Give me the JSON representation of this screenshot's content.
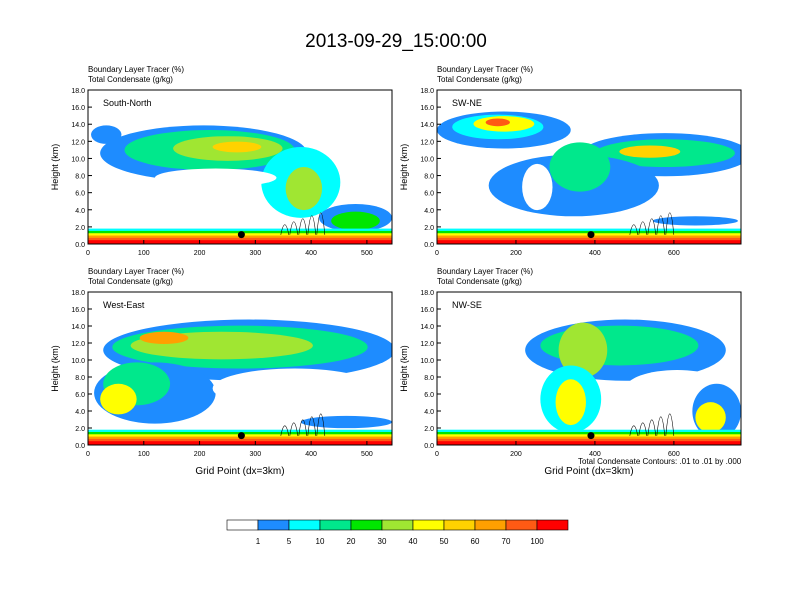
{
  "figure": {
    "title": "2013-09-29_15:00:00",
    "footnote": "Total Condensate Contours: .01 to .01 by .000"
  },
  "colorbar": {
    "colors": [
      "#ffffff",
      "#1e8cff",
      "#00ffff",
      "#00e88c",
      "#00e600",
      "#a0e632",
      "#ffff00",
      "#ffd200",
      "#ffa000",
      "#ff5a14",
      "#ff0000"
    ],
    "labels": [
      "1",
      "5",
      "10",
      "20",
      "30",
      "40",
      "50",
      "60",
      "70",
      "100"
    ]
  },
  "chart_data": [
    {
      "type": "heatmap",
      "title": "South-North",
      "left_title_1": "Boundary Layer Tracer   (%)",
      "left_title_2": "Total Condensate   (g/kg)",
      "ylabel": "Height (km)",
      "xlabel": "",
      "xlim": [
        0,
        545
      ],
      "ylim": [
        0,
        18
      ],
      "xticks": [
        "0",
        "100",
        "200",
        "300",
        "400",
        "500"
      ],
      "yticks": [
        "0.0",
        "2.0",
        "4.0",
        "6.0",
        "8.0",
        "10.0",
        "12.0",
        "14.0",
        "16.0",
        "18.0"
      ],
      "marker": [
        275,
        1.1
      ]
    },
    {
      "type": "heatmap",
      "title": "SW-NE",
      "left_title_1": "Boundary Layer Tracer   (%)",
      "left_title_2": "Total Condensate   (g/kg)",
      "ylabel": "Height (km)",
      "xlabel": "",
      "xlim": [
        0,
        770
      ],
      "ylim": [
        0,
        18
      ],
      "xticks": [
        "0",
        "200",
        "400",
        "600"
      ],
      "yticks": [
        "0.0",
        "2.0",
        "4.0",
        "6.0",
        "8.0",
        "10.0",
        "12.0",
        "14.0",
        "16.0",
        "18.0"
      ],
      "marker": [
        390,
        1.1
      ]
    },
    {
      "type": "heatmap",
      "title": "West-East",
      "left_title_1": "Boundary Layer Tracer   (%)",
      "left_title_2": "Total Condensate   (g/kg)",
      "ylabel": "Height (km)",
      "xlabel": "Grid Point (dx=3km)",
      "xlim": [
        0,
        545
      ],
      "ylim": [
        0,
        18
      ],
      "xticks": [
        "0",
        "100",
        "200",
        "300",
        "400",
        "500"
      ],
      "yticks": [
        "0.0",
        "2.0",
        "4.0",
        "6.0",
        "8.0",
        "10.0",
        "12.0",
        "14.0",
        "16.0",
        "18.0"
      ],
      "marker": [
        275,
        1.1
      ]
    },
    {
      "type": "heatmap",
      "title": "NW-SE",
      "left_title_1": "Boundary Layer Tracer   (%)",
      "left_title_2": "Total Condensate   (g/kg)",
      "ylabel": "Height (km)",
      "xlabel": "Grid Point (dx=3km)",
      "xlim": [
        0,
        770
      ],
      "ylim": [
        0,
        18
      ],
      "xticks": [
        "0",
        "200",
        "400",
        "600"
      ],
      "yticks": [
        "0.0",
        "2.0",
        "4.0",
        "6.0",
        "8.0",
        "10.0",
        "12.0",
        "14.0",
        "16.0",
        "18.0"
      ],
      "marker": [
        390,
        1.1
      ]
    }
  ]
}
